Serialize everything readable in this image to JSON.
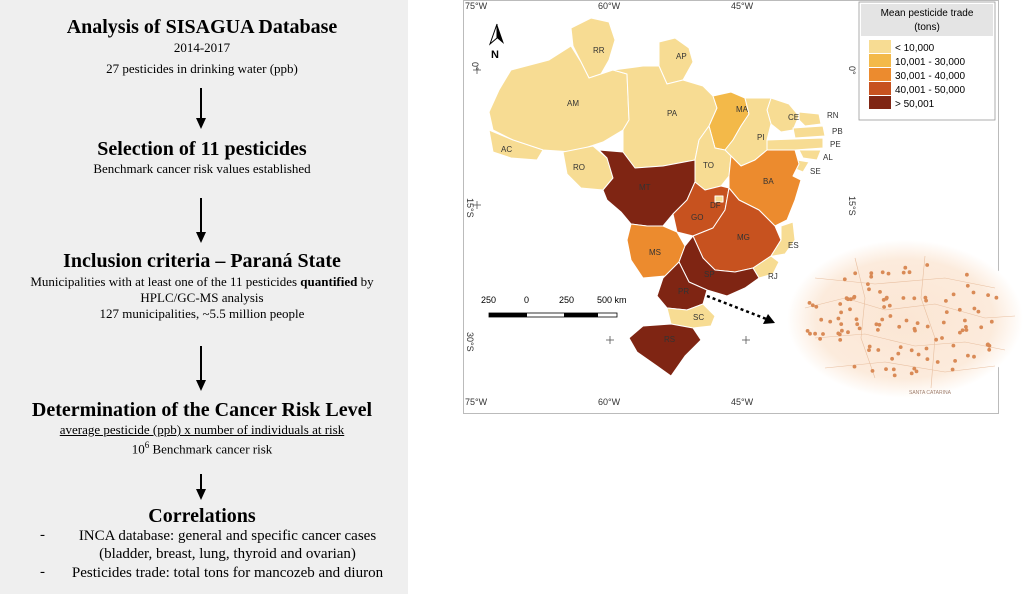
{
  "flow": {
    "step1": {
      "title": "Analysis of SISAGUA Database",
      "line1": "2014-2017",
      "line2": "27 pesticides in drinking water (ppb)"
    },
    "step2": {
      "title": "Selection of 11 pesticides",
      "line1": "Benchmark cancer risk values established"
    },
    "step3": {
      "title": "Inclusion criteria – Paraná State",
      "line1a": "Municipalities with at least one of the 11 pesticides ",
      "line1b": "quantified",
      "line1c": " by",
      "line2": "HPLC/GC-MS analysis",
      "line3": "127 municipalities, ~5.5 million people"
    },
    "step4": {
      "title": "Determination of the Cancer Risk Level",
      "line1": "average pesticide (ppb) x number of individuals at risk",
      "line2a": "10",
      "line2sup": "6",
      "line2b": " Benchmark cancer risk"
    },
    "step5": {
      "title": "Correlations",
      "bullet": "-",
      "b1a": "INCA database: general and specific cancer cases",
      "b1b": "(bladder, breast, lung, thyroid and ovarian)",
      "b2": "Pesticides trade: total tons for mancozeb and diuron"
    }
  },
  "map": {
    "legend": {
      "title1": "Mean pesticide trade",
      "title2": "(tons)",
      "items": [
        {
          "label": "< 10,000",
          "color": "#f7dc93"
        },
        {
          "label": "10,001 - 30,000",
          "color": "#f3b949"
        },
        {
          "label": "30,001 - 40,000",
          "color": "#ec8b2e"
        },
        {
          "label": "40,001 - 50,000",
          "color": "#c7521f"
        },
        {
          "label": "> 50,001",
          "color": "#7f2513"
        }
      ]
    },
    "north": "N",
    "coords": {
      "top_75": "75°W",
      "top_60": "60°W",
      "top_45": "45°W",
      "bot_75": "75°W",
      "bot_60": "60°W",
      "bot_45": "45°W",
      "left_0": "0°",
      "right_0": "0°",
      "left_15": "15°S",
      "right_15": "15°S",
      "left_30": "30°S"
    },
    "scale": {
      "l1": "250",
      "l2": "0",
      "l3": "250",
      "l4": "500 km"
    },
    "states": {
      "RR": "RR",
      "AP": "AP",
      "AM": "AM",
      "PA": "PA",
      "MA": "MA",
      "CE": "CE",
      "RN": "RN",
      "PB": "PB",
      "PE": "PE",
      "AL": "AL",
      "SE": "SE",
      "PI": "PI",
      "AC": "AC",
      "RO": "RO",
      "TO": "TO",
      "BA": "BA",
      "MT": "MT",
      "DF": "DF",
      "GO": "GO",
      "MG": "MG",
      "ES": "ES",
      "MS": "MS",
      "SP": "SP",
      "RJ": "RJ",
      "PR": "PR",
      "SC": "SC",
      "RS": "RS"
    }
  },
  "inset": {
    "label": "SANTA CATARINA"
  }
}
